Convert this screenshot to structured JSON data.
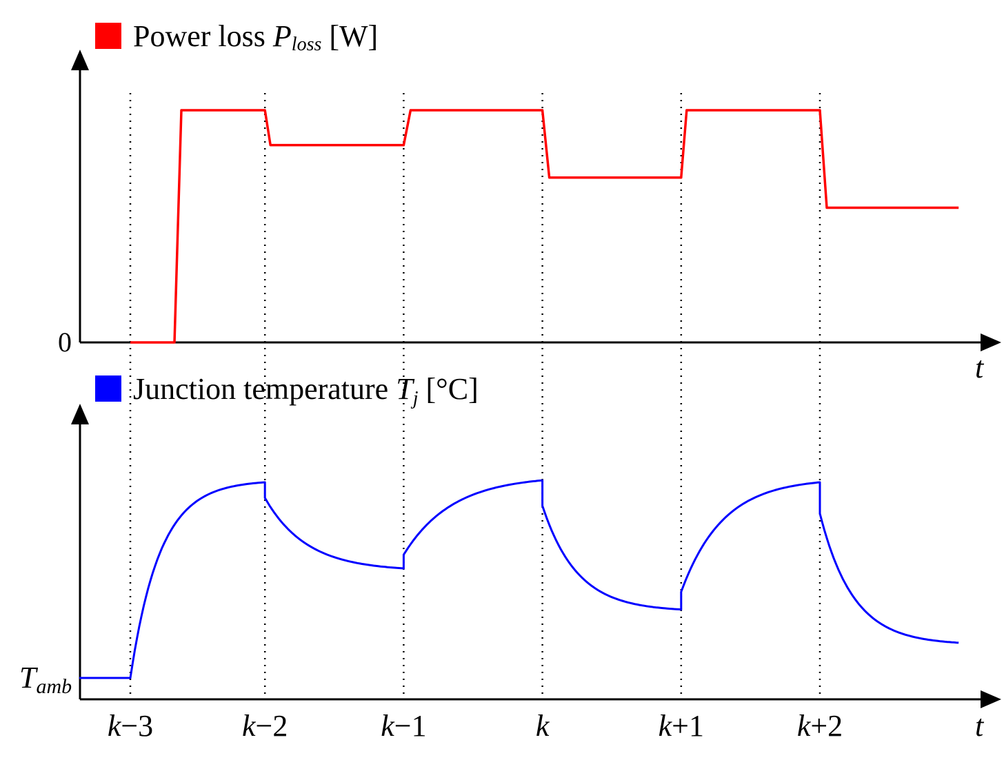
{
  "chart_data": [
    {
      "type": "line",
      "legend": {
        "text": "Power loss ",
        "symbol": "P",
        "subscript": "loss",
        "unit": " [W]",
        "color": "#ff0000"
      },
      "y_tick": "0",
      "x_axis_label": "t",
      "x": [
        0,
        0.32,
        0.37,
        1.0,
        1.04,
        2.0,
        2.05,
        3.0,
        3.05,
        4.0,
        4.04,
        5.0,
        5.05,
        6.0
      ],
      "y": [
        0,
        0,
        1.0,
        1.0,
        0.85,
        0.85,
        1.0,
        1.0,
        0.71,
        0.71,
        1.0,
        1.0,
        0.58,
        0.58
      ],
      "ylim": [
        0,
        1.15
      ],
      "xlim": [
        -0.37,
        6.25
      ],
      "color": "#ff0000"
    },
    {
      "type": "line",
      "legend": {
        "text": "Junction temperature ",
        "symbol": "T",
        "subscript": "j",
        "unit": " [°C]",
        "color": "#0000ff"
      },
      "y_tick": {
        "symbol": "T",
        "subscript": "amb"
      },
      "x_axis_label": "t",
      "segments": [
        {
          "t0": 0.0,
          "t1": 1.0,
          "start": 0.0,
          "end": 1.0,
          "tau": 0.22,
          "jump_start": 0.0
        },
        {
          "t0": 1.0,
          "t1": 2.0,
          "start": 0.92,
          "end": 0.56,
          "tau": 0.3,
          "jump_start": 1.0
        },
        {
          "t0": 2.0,
          "t1": 3.0,
          "start": 0.63,
          "end": 1.01,
          "tau": 0.35,
          "jump_start": 0.56
        },
        {
          "t0": 3.0,
          "t1": 4.0,
          "start": 0.88,
          "end": 0.35,
          "tau": 0.25,
          "jump_start": 1.01
        },
        {
          "t0": 4.0,
          "t1": 5.0,
          "start": 0.44,
          "end": 1.0,
          "tau": 0.3,
          "jump_start": 0.35
        },
        {
          "t0": 5.0,
          "t1": 6.0,
          "start": 0.84,
          "end": 0.18,
          "tau": 0.24,
          "jump_start": 1.0
        }
      ],
      "x_pre": [
        -0.37,
        0.0
      ],
      "ylim": [
        0,
        1.15
      ],
      "xlim": [
        -0.37,
        6.25
      ],
      "color": "#0000ff"
    }
  ],
  "x_ticks": [
    {
      "x": 0,
      "k": "k",
      "op": "−",
      "n": "3"
    },
    {
      "x": 1,
      "k": "k",
      "op": "−",
      "n": "2"
    },
    {
      "x": 2,
      "k": "k",
      "op": "−",
      "n": "1"
    },
    {
      "x": 3,
      "k": "k",
      "op": "",
      "n": ""
    },
    {
      "x": 4,
      "k": "k",
      "op": "+",
      "n": "1"
    },
    {
      "x": 5,
      "k": "k",
      "op": "+",
      "n": "2"
    }
  ]
}
